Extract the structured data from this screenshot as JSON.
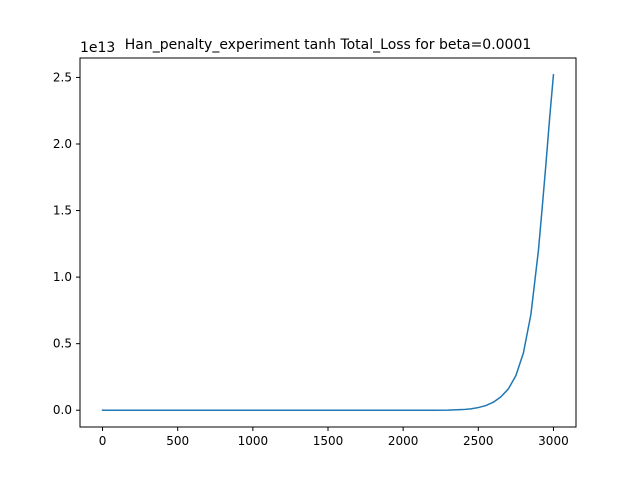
{
  "chart_data": {
    "type": "line",
    "title": "Han_penalty_experiment tanh Total_Loss for beta=0.0001",
    "xlabel": "",
    "ylabel": "",
    "y_offset_label": "1e13",
    "xlim": [
      -150,
      3150
    ],
    "ylim": [
      -0.126,
      2.646
    ],
    "x_ticks": [
      0,
      500,
      1000,
      1500,
      2000,
      2500,
      3000
    ],
    "x_tick_labels": [
      "0",
      "500",
      "1000",
      "1500",
      "2000",
      "2500",
      "3000"
    ],
    "y_ticks": [
      0.0,
      0.5,
      1.0,
      1.5,
      2.0,
      2.5
    ],
    "y_tick_labels": [
      "0.0",
      "0.5",
      "1.0",
      "1.5",
      "2.0",
      "2.5"
    ],
    "grid": false,
    "legend": "none",
    "series": [
      {
        "color": "#1f77b4",
        "x": [
          0,
          500,
          1000,
          1500,
          2000,
          2200,
          2300,
          2400,
          2450,
          2500,
          2550,
          2600,
          2650,
          2700,
          2750,
          2800,
          2850,
          2900,
          2925,
          2950,
          2975,
          3000
        ],
        "y": [
          0.0,
          0.0,
          0.0,
          0.0,
          0.0,
          0.0003,
          0.0012,
          0.005,
          0.01,
          0.02,
          0.035,
          0.06,
          0.1,
          0.16,
          0.26,
          0.43,
          0.72,
          1.2,
          1.52,
          1.85,
          2.2,
          2.52
        ]
      }
    ]
  }
}
